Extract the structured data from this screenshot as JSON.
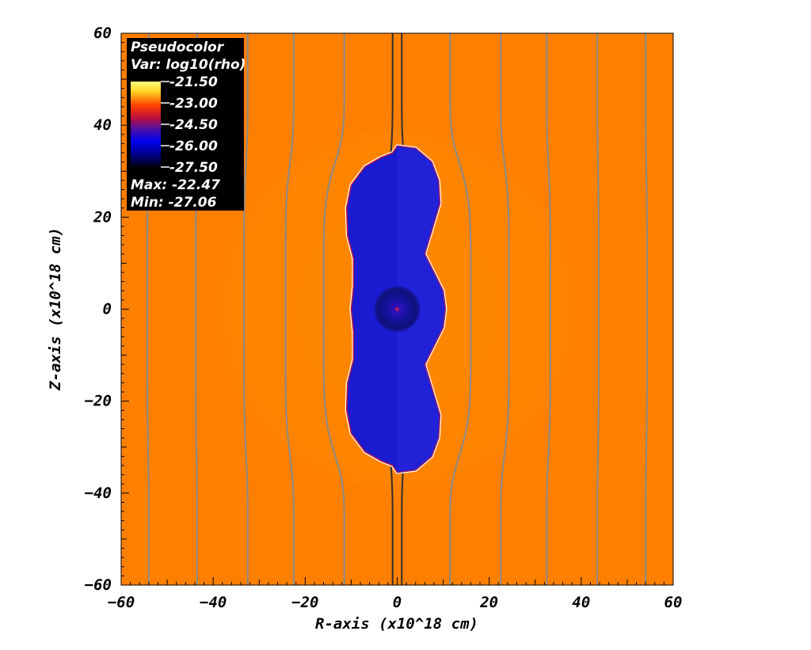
{
  "chart_data": {
    "type": "heatmap",
    "title": "",
    "xlabel": "R-axis (x10^18 cm)",
    "ylabel": "Z-axis (x10^18 cm)",
    "xlim": [
      -60,
      60
    ],
    "ylim": [
      -60,
      60
    ],
    "x_ticks": [
      -60,
      -40,
      -20,
      0,
      20,
      40,
      60
    ],
    "y_ticks": [
      -60,
      -40,
      -20,
      0,
      20,
      40,
      60
    ],
    "x_tick_labels": [
      "−60",
      "−40",
      "−20",
      "0",
      "20",
      "40",
      "60"
    ],
    "y_tick_labels": [
      "−60",
      "−40",
      "−20",
      "0",
      "20",
      "40",
      "60"
    ],
    "legend": {
      "placement": "top-left",
      "plot_type": "Pseudocolor",
      "variable": "Var: log10(rho)",
      "scale_values": [
        -21.5,
        -23.0,
        -24.5,
        -26.0,
        -27.5
      ],
      "scale_labels": [
        "-21.50",
        "-23.00",
        "-24.50",
        "-26.00",
        "-27.50"
      ],
      "max_label": "Max: -22.47",
      "min_label": "Min: -27.06",
      "max": -22.47,
      "min": -27.06
    },
    "background_color": "#ff8000",
    "cavity_color": "#1a1ad0",
    "field_line_color": "#8a8a8a",
    "field_lines_x": [
      -54,
      -43.5,
      -32.5,
      -22.5,
      -11.5,
      -1,
      1,
      11.5,
      22.5,
      32.5,
      43.5,
      54
    ],
    "cavity_outline": [
      [
        0,
        35.5
      ],
      [
        4,
        35
      ],
      [
        7.5,
        32
      ],
      [
        9,
        28
      ],
      [
        9.3,
        23
      ],
      [
        7.5,
        17
      ],
      [
        6,
        12
      ],
      [
        8,
        8
      ],
      [
        10,
        4
      ],
      [
        10.5,
        0
      ],
      [
        10,
        -4
      ],
      [
        8,
        -8
      ],
      [
        6,
        -12
      ],
      [
        7.5,
        -17
      ],
      [
        9.3,
        -23
      ],
      [
        9,
        -28
      ],
      [
        7.5,
        -32
      ],
      [
        4,
        -35
      ],
      [
        0,
        -35.5
      ],
      [
        -1,
        -34
      ],
      [
        -3.5,
        -33
      ],
      [
        -7,
        -31
      ],
      [
        -10,
        -27
      ],
      [
        -11,
        -22
      ],
      [
        -10.8,
        -16
      ],
      [
        -9.5,
        -11
      ],
      [
        -9.5,
        -5
      ],
      [
        -10,
        0
      ],
      [
        -9.5,
        5
      ],
      [
        -9.5,
        11
      ],
      [
        -10.8,
        16
      ],
      [
        -11,
        22
      ],
      [
        -10,
        27
      ],
      [
        -7,
        31
      ],
      [
        -3.5,
        33
      ],
      [
        -1,
        34
      ]
    ]
  }
}
